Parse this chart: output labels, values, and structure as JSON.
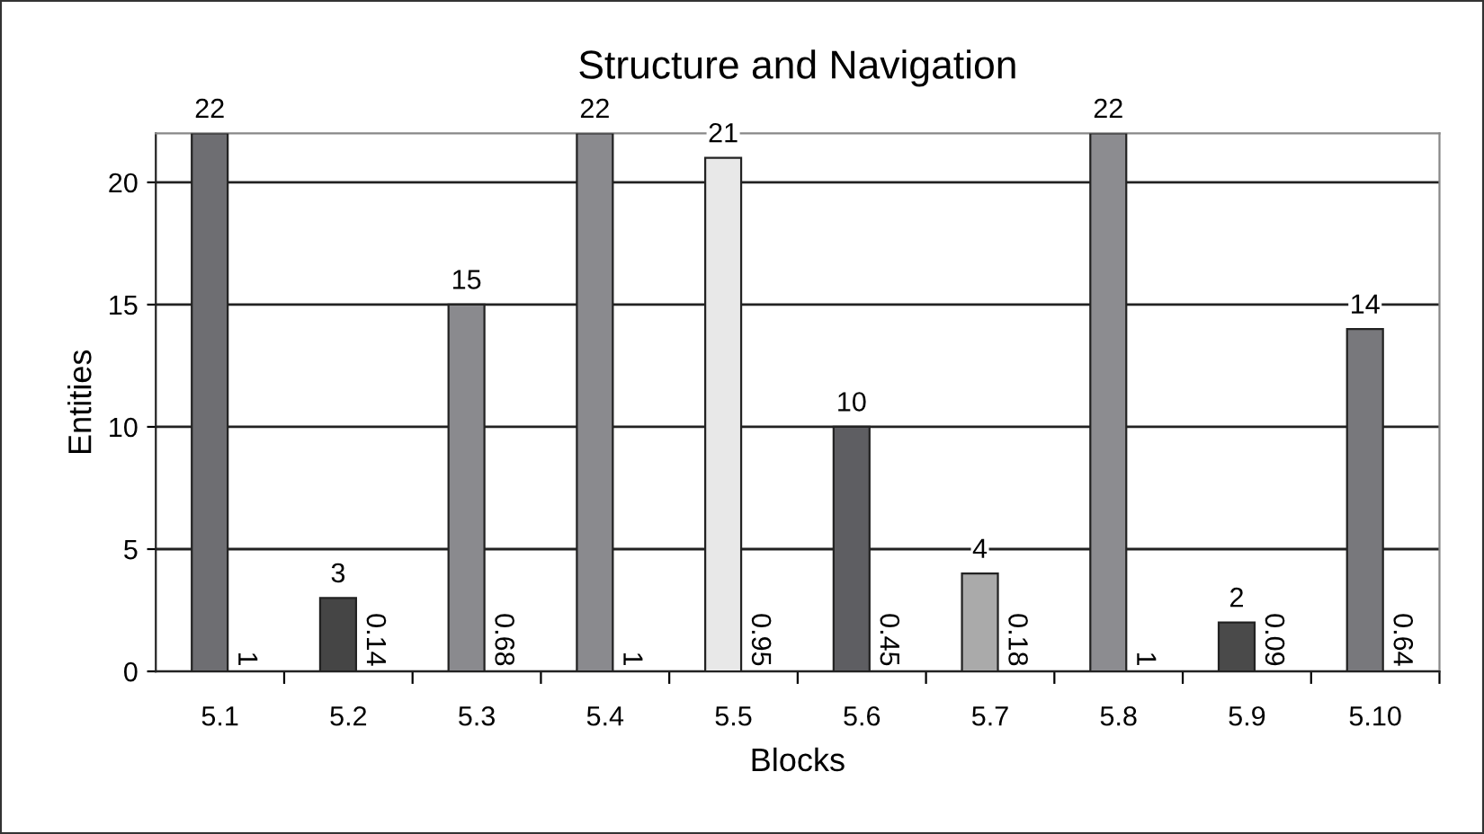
{
  "chart_data": {
    "type": "bar",
    "title": "Structure and Navigation",
    "xlabel": "Blocks",
    "ylabel": "Entities",
    "categories": [
      "5.1",
      "5.2",
      "5.3",
      "5.4",
      "5.5",
      "5.6",
      "5.7",
      "5.8",
      "5.9",
      "5.10"
    ],
    "values": [
      22,
      3,
      15,
      22,
      21,
      10,
      4,
      22,
      2,
      14
    ],
    "colors": [
      "#6e6e72",
      "#454545",
      "#8a8a8e",
      "#8a8a8e",
      "#e8e8e8",
      "#5e5e62",
      "#aaaaaa",
      "#8c8c90",
      "#4a4a4a",
      "#78787c"
    ],
    "ylim": [
      0,
      22
    ],
    "yticks": [
      0,
      5,
      10,
      15,
      20
    ],
    "grid": "y",
    "data_labels": true,
    "annotations": [
      {
        "text": "1",
        "x": "5.1",
        "y": 0
      },
      {
        "text": "0.14",
        "x": "5.2",
        "y": 0
      },
      {
        "text": "0.68",
        "x": "5.3",
        "y": 0
      },
      {
        "text": "1",
        "x": "5.4",
        "y": 0
      },
      {
        "text": "0.95",
        "x": "5.5",
        "y": 0
      },
      {
        "text": "0.45",
        "x": "5.6",
        "y": 0
      },
      {
        "text": "0.18",
        "x": "5.7",
        "y": 0
      },
      {
        "text": "1",
        "x": "5.8",
        "y": 0
      },
      {
        "text": "0.09",
        "x": "5.9",
        "y": 0
      },
      {
        "text": "0.64",
        "x": "5.10",
        "y": 0
      }
    ]
  }
}
